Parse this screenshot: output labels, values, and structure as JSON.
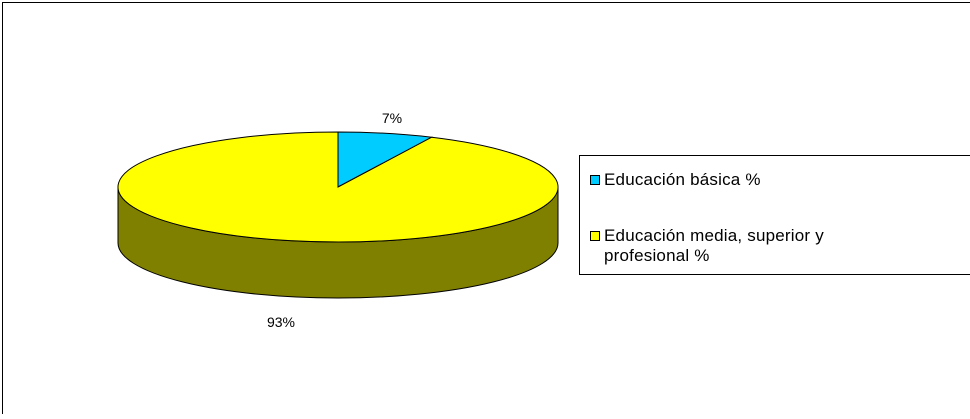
{
  "chart_data": {
    "type": "pie",
    "title": "",
    "categories": [
      "Educación básica %",
      "Educación media, superior y profesional %"
    ],
    "values": [
      7,
      93
    ],
    "data_labels": [
      "7%",
      "93%"
    ],
    "colors": [
      "#00CCFF",
      "#FFFF00"
    ],
    "side_colors": [
      "#0099BB",
      "#808000"
    ],
    "style": "3d",
    "legend_position": "right"
  },
  "legend": {
    "items": [
      {
        "label": "Educación básica %",
        "color": "#00CCFF"
      },
      {
        "label": "Educación media, superior y profesional %",
        "color": "#FFFF00"
      }
    ]
  }
}
